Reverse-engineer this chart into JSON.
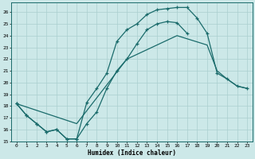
{
  "xlabel": "Humidex (Indice chaleur)",
  "bg_color": "#cce8e8",
  "line_color": "#1a6b6b",
  "grid_color": "#aacfcf",
  "xlim": [
    -0.5,
    23.5
  ],
  "ylim": [
    15,
    26.8
  ],
  "xticks": [
    0,
    1,
    2,
    3,
    4,
    5,
    6,
    7,
    8,
    9,
    10,
    11,
    12,
    13,
    14,
    15,
    16,
    17,
    18,
    19,
    20,
    21,
    22,
    23
  ],
  "yticks": [
    15,
    16,
    17,
    18,
    19,
    20,
    21,
    22,
    23,
    24,
    25,
    26
  ],
  "line1_x": [
    0,
    1,
    2,
    3,
    4,
    5,
    6,
    7,
    8,
    9,
    10,
    11,
    12,
    13,
    14,
    15,
    16,
    17
  ],
  "line1_y": [
    18.2,
    17.2,
    16.5,
    15.8,
    16.0,
    15.2,
    15.2,
    16.5,
    17.5,
    19.5,
    21.0,
    22.0,
    23.3,
    24.5,
    25.0,
    25.2,
    25.1,
    24.2
  ],
  "line2_x": [
    0,
    1,
    2,
    3,
    4,
    5,
    6,
    7,
    8,
    9,
    10,
    11,
    12,
    13,
    14,
    15,
    16,
    17,
    18,
    19,
    20,
    21,
    22,
    23
  ],
  "line2_y": [
    18.2,
    17.2,
    16.5,
    15.8,
    16.0,
    15.2,
    15.2,
    18.3,
    19.5,
    20.8,
    23.5,
    24.5,
    25.0,
    25.8,
    26.2,
    26.3,
    26.4,
    26.4,
    25.5,
    24.2,
    20.8,
    20.3,
    19.7,
    19.5
  ],
  "line3_x": [
    0,
    6,
    11,
    16,
    19,
    20,
    21,
    22,
    23
  ],
  "line3_y": [
    18.2,
    16.5,
    22.0,
    24.0,
    23.2,
    21.0,
    20.3,
    19.7,
    19.5
  ]
}
